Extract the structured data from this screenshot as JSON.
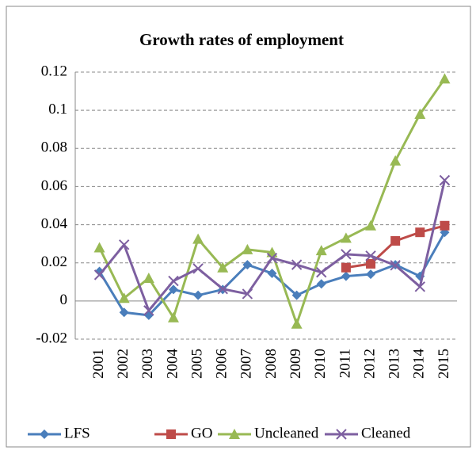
{
  "chart_data": {
    "type": "line",
    "title": "Growth rates of employment",
    "categories": [
      "2001",
      "2002",
      "2003",
      "2004",
      "2005",
      "2006",
      "2007",
      "2008",
      "2009",
      "2010",
      "2011",
      "2012",
      "2013",
      "2014",
      "2015"
    ],
    "series": [
      {
        "name": "LFS",
        "color": "#4a7ebb",
        "marker": "diamond",
        "values": [
          0.0155,
          -0.006,
          -0.0075,
          0.006,
          0.003,
          0.006,
          0.019,
          0.0145,
          0.003,
          0.009,
          0.013,
          0.014,
          0.019,
          0.013,
          0.036
        ]
      },
      {
        "name": "GO",
        "color": "#be4b48",
        "marker": "square",
        "values": [
          null,
          null,
          null,
          null,
          null,
          null,
          null,
          null,
          null,
          null,
          0.0175,
          0.0195,
          0.0315,
          0.036,
          0.0395
        ]
      },
      {
        "name": "Uncleaned",
        "color": "#98b954",
        "marker": "triangle",
        "values": [
          0.028,
          0.0015,
          0.012,
          -0.0087,
          0.0325,
          0.0175,
          0.027,
          0.0255,
          -0.012,
          0.0265,
          0.033,
          0.0395,
          0.0735,
          0.098,
          0.1165
        ]
      },
      {
        "name": "Cleaned",
        "color": "#7d5fa0",
        "marker": "x",
        "values": [
          0.0137,
          0.0295,
          -0.005,
          0.0105,
          0.017,
          0.0063,
          0.0037,
          0.0225,
          0.019,
          0.015,
          0.0245,
          0.0237,
          0.0187,
          0.0075,
          0.0633
        ]
      }
    ],
    "ylim": [
      -0.02,
      0.12
    ],
    "yticks": [
      -0.02,
      0,
      0.02,
      0.04,
      0.06,
      0.08,
      0.1,
      0.12
    ],
    "grid": true,
    "legend": "bottom"
  }
}
